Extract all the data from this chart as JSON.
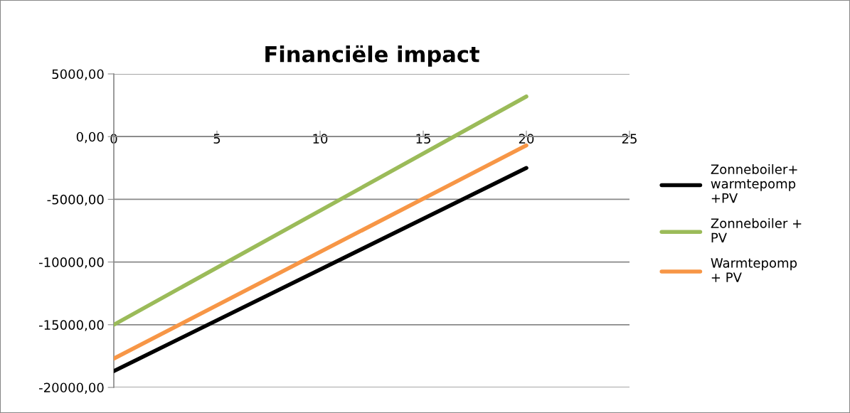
{
  "chart_data": {
    "type": "line",
    "title": "Financiële impact",
    "x": [
      0,
      20
    ],
    "series": [
      {
        "name": "Zonneboiler+\nwarmtepomp\n+PV",
        "color": "#000000",
        "values": [
          -18700,
          -2500
        ]
      },
      {
        "name": "Zonneboiler +\nPV",
        "color": "#9bbb59",
        "values": [
          -15000,
          3200
        ]
      },
      {
        "name": "Warmtepomp\n+ PV",
        "color": "#f79646",
        "values": [
          -17700,
          -700
        ]
      }
    ],
    "xlim": [
      0,
      25
    ],
    "xticks": [
      0,
      5,
      10,
      15,
      20,
      25
    ],
    "ylim": [
      -20000,
      5000
    ],
    "yticks": [
      {
        "value": -20000,
        "label": "-20000,00"
      },
      {
        "value": -15000,
        "label": "-15000,00"
      },
      {
        "value": -10000,
        "label": "-10000,00"
      },
      {
        "value": -5000,
        "label": "-5000,00"
      },
      {
        "value": 0,
        "label": "0,00"
      },
      {
        "value": 5000,
        "label": "5000,00"
      }
    ],
    "grid": "y",
    "legend": "right",
    "marker": "none",
    "line_style": "solid"
  }
}
